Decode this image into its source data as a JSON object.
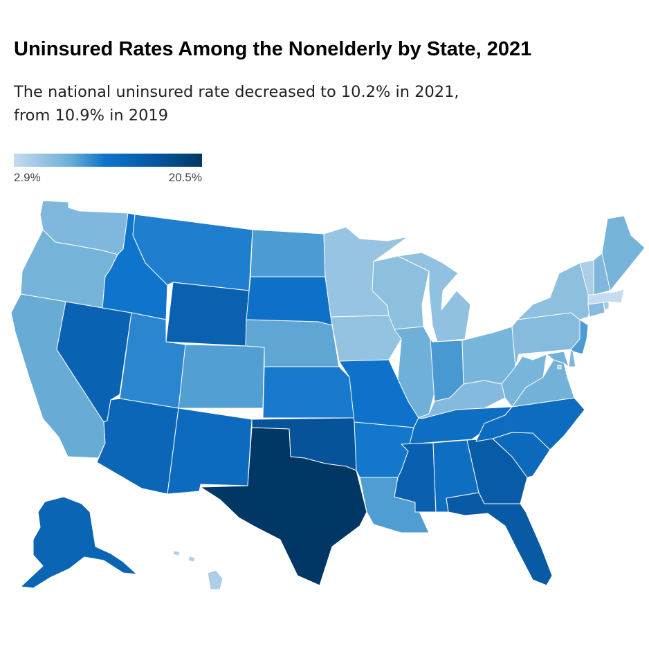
{
  "title": "Uninsured Rates Among the Nonelderly by State, 2021",
  "subtitle_lines": [
    "The national uninsured rate decreased to 10.2% in 2021,",
    "from 10.9% in 2019"
  ],
  "legend": {
    "min_label": "2.9%",
    "max_label": "20.5%",
    "colors": [
      "#c6dbef",
      "#6baed6",
      "#0f74cc",
      "#0757a0",
      "#003764"
    ]
  },
  "states": [
    {
      "abbr": "WA",
      "rate": 7.0
    },
    {
      "abbr": "OR",
      "rate": 7.6
    },
    {
      "abbr": "CA",
      "rate": 8.3
    },
    {
      "abbr": "NV",
      "rate": 14.2
    },
    {
      "abbr": "ID",
      "rate": 11.4
    },
    {
      "abbr": "MT",
      "rate": 10.8
    },
    {
      "abbr": "WY",
      "rate": 14.4
    },
    {
      "abbr": "UT",
      "rate": 10.4
    },
    {
      "abbr": "AZ",
      "rate": 13.6
    },
    {
      "abbr": "CO",
      "rate": 9.0
    },
    {
      "abbr": "NM",
      "rate": 12.8
    },
    {
      "abbr": "ND",
      "rate": 9.2
    },
    {
      "abbr": "SD",
      "rate": 12.0
    },
    {
      "abbr": "NE",
      "rate": 8.6
    },
    {
      "abbr": "KS",
      "rate": 11.0
    },
    {
      "abbr": "OK",
      "rate": 16.6
    },
    {
      "abbr": "TX",
      "rate": 20.5
    },
    {
      "abbr": "MN",
      "rate": 5.6
    },
    {
      "abbr": "IA",
      "rate": 5.8
    },
    {
      "abbr": "MO",
      "rate": 11.6
    },
    {
      "abbr": "AR",
      "rate": 11.2
    },
    {
      "abbr": "LA",
      "rate": 9.1
    },
    {
      "abbr": "WI",
      "rate": 6.2
    },
    {
      "abbr": "IL",
      "rate": 8.0
    },
    {
      "abbr": "MI",
      "rate": 6.0
    },
    {
      "abbr": "IN",
      "rate": 9.4
    },
    {
      "abbr": "OH",
      "rate": 7.4
    },
    {
      "abbr": "KY",
      "rate": 6.8
    },
    {
      "abbr": "TN",
      "rate": 12.4
    },
    {
      "abbr": "MS",
      "rate": 14.6
    },
    {
      "abbr": "AL",
      "rate": 12.4
    },
    {
      "abbr": "GA",
      "rate": 15.4
    },
    {
      "abbr": "FL",
      "rate": 15.6
    },
    {
      "abbr": "SC",
      "rate": 13.0
    },
    {
      "abbr": "NC",
      "rate": 12.6
    },
    {
      "abbr": "VA",
      "rate": 7.8
    },
    {
      "abbr": "WV",
      "rate": 7.4
    },
    {
      "abbr": "PA",
      "rate": 6.6
    },
    {
      "abbr": "NY",
      "rate": 6.2
    },
    {
      "abbr": "NJ",
      "rate": 9.2
    },
    {
      "abbr": "DE",
      "rate": 7.2
    },
    {
      "abbr": "MD",
      "rate": 7.8
    },
    {
      "abbr": "DC",
      "rate": 4.0
    },
    {
      "abbr": "CT",
      "rate": 6.6
    },
    {
      "abbr": "RI",
      "rate": 4.8
    },
    {
      "abbr": "MA",
      "rate": 2.9
    },
    {
      "abbr": "VT",
      "rate": 4.4
    },
    {
      "abbr": "NH",
      "rate": 7.0
    },
    {
      "abbr": "ME",
      "rate": 7.6
    },
    {
      "abbr": "AK",
      "rate": 13.8
    },
    {
      "abbr": "HI",
      "rate": 4.4
    }
  ]
}
